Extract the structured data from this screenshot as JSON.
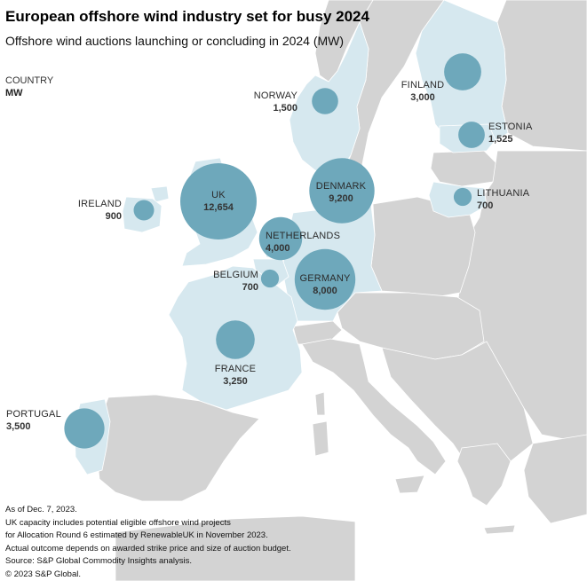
{
  "title": "European offshore wind industry set for busy 2024",
  "subtitle": "Offshore wind auctions launching or concluding in 2024 (MW)",
  "legend": {
    "country_label": "COUNTRY",
    "unit_label": "MW"
  },
  "colors": {
    "water": "#ffffff",
    "land": "#d3d3d3",
    "highlight_land": "#d6e8ef",
    "bubble": "#6ea8bb",
    "border": "#ffffff"
  },
  "countries": [
    {
      "name": "UK",
      "mw": "12,654",
      "value": 12654
    },
    {
      "name": "DENMARK",
      "mw": "9,200",
      "value": 9200
    },
    {
      "name": "GERMANY",
      "mw": "8,000",
      "value": 8000
    },
    {
      "name": "NETHERLANDS",
      "mw": "4,000",
      "value": 4000
    },
    {
      "name": "PORTUGAL",
      "mw": "3,500",
      "value": 3500
    },
    {
      "name": "FRANCE",
      "mw": "3,250",
      "value": 3250
    },
    {
      "name": "FINLAND",
      "mw": "3,000",
      "value": 3000
    },
    {
      "name": "ESTONIA",
      "mw": "1,525",
      "value": 1525
    },
    {
      "name": "NORWAY",
      "mw": "1,500",
      "value": 1500
    },
    {
      "name": "IRELAND",
      "mw": "900",
      "value": 900
    },
    {
      "name": "BELGIUM",
      "mw": "700",
      "value": 700
    },
    {
      "name": "LITHUANIA",
      "mw": "700",
      "value": 700
    }
  ],
  "notes": [
    "As of Dec. 7, 2023.",
    "UK capacity includes potential eligible offshore wind projects",
    "for Allocation Round 6 estimated by RenewableUK in November 2023.",
    "Actual outcome depends on awarded strike price and size of auction budget.",
    "Source: S&P Global Commodity Insights analysis.",
    "© 2023 S&P Global."
  ]
}
